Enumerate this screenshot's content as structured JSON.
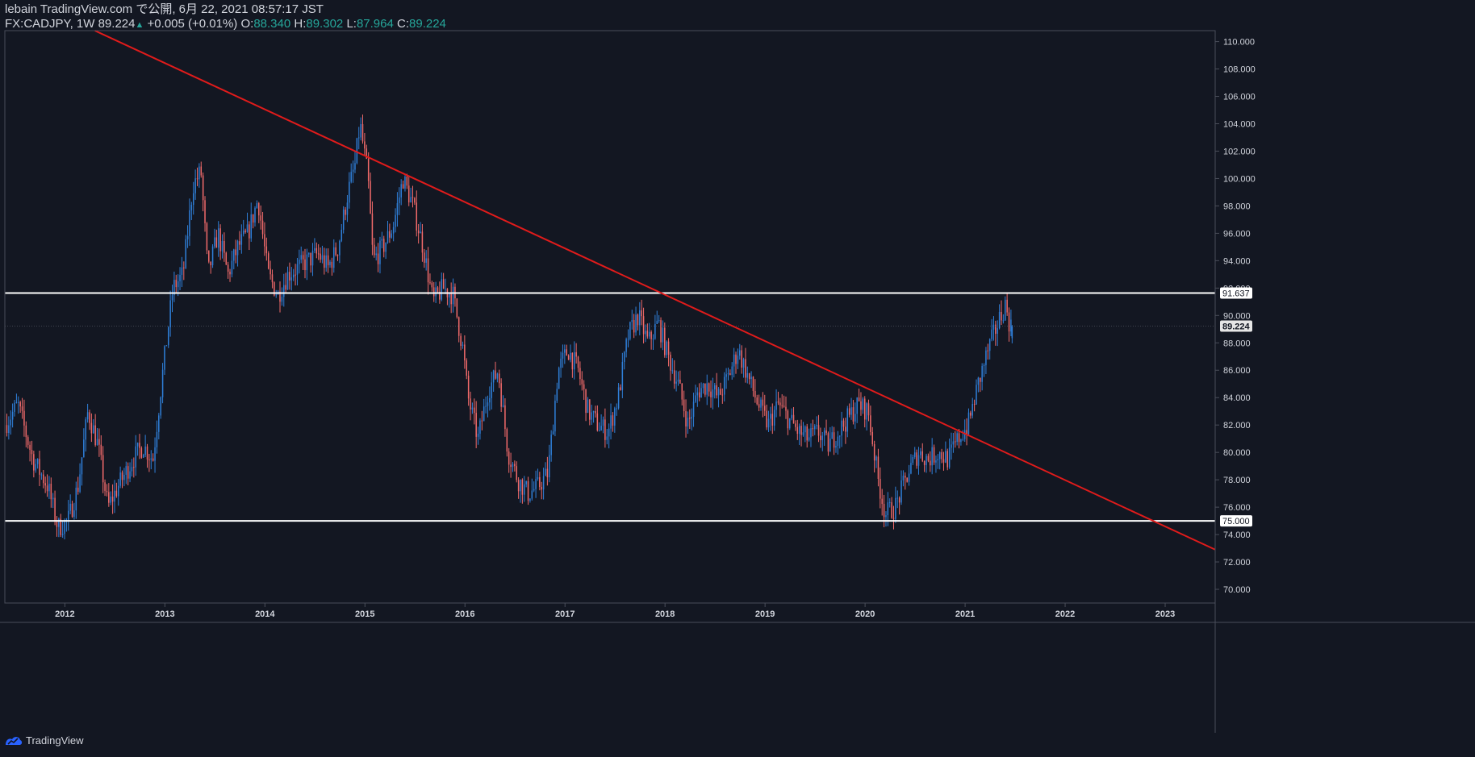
{
  "header": {
    "published": "lebain TradingView.com で公開, 6月 22, 2021 08:57:17 JST",
    "symbol": "FX:CADJPY, 1W",
    "last": "89.224",
    "change": "+0.005 (+0.01%)",
    "open_label": "O:",
    "open": "88.340",
    "high_label": "H:",
    "high": "89.302",
    "low_label": "L:",
    "low": "87.964",
    "close_label": "C:",
    "close": "89.224"
  },
  "footer": {
    "brand": "TradingView"
  },
  "colors": {
    "background": "#131722",
    "up": "#2f7fd8",
    "down": "#f06a6a",
    "trendline": "#e01b1b",
    "level": "#ffffff",
    "axis_text": "#d1d4dc",
    "grid_border": "#4a4e5a"
  },
  "chart_data": {
    "type": "candlestick",
    "symbol": "CADJPY",
    "timeframe": "1W",
    "ylim": [
      69.0,
      110.8
    ],
    "xlim": [
      2011.4,
      2023.5
    ],
    "y_ticks": [
      "70.000",
      "72.000",
      "74.000",
      "76.000",
      "78.000",
      "80.000",
      "82.000",
      "84.000",
      "86.000",
      "88.000",
      "90.000",
      "92.000",
      "94.000",
      "96.000",
      "98.000",
      "100.000",
      "102.000",
      "104.000",
      "106.000",
      "108.000",
      "110.000"
    ],
    "x_ticks": [
      "2012",
      "2013",
      "2014",
      "2015",
      "2016",
      "2017",
      "2018",
      "2019",
      "2020",
      "2021",
      "2022",
      "2023"
    ],
    "horizontal_levels": [
      {
        "value": 91.637,
        "label": "91.637"
      },
      {
        "value": 75.0,
        "label": "75.000"
      }
    ],
    "last_price_label": "89.224",
    "trendline": {
      "points": [
        [
          2012.3,
          110.8
        ],
        [
          2023.5,
          72.9
        ]
      ]
    },
    "price_path": [
      [
        2011.42,
        82.0
      ],
      [
        2011.55,
        83.5
      ],
      [
        2011.7,
        79.5
      ],
      [
        2011.85,
        77.5
      ],
      [
        2011.95,
        74.5
      ],
      [
        2012.05,
        75.0
      ],
      [
        2012.15,
        77.5
      ],
      [
        2012.25,
        83.0
      ],
      [
        2012.35,
        80.5
      ],
      [
        2012.45,
        76.0
      ],
      [
        2012.55,
        77.5
      ],
      [
        2012.7,
        79.5
      ],
      [
        2012.8,
        80.5
      ],
      [
        2012.9,
        79.5
      ],
      [
        2013.0,
        86.0
      ],
      [
        2013.1,
        92.0
      ],
      [
        2013.2,
        93.0
      ],
      [
        2013.3,
        99.5
      ],
      [
        2013.38,
        100.5
      ],
      [
        2013.45,
        93.0
      ],
      [
        2013.55,
        96.0
      ],
      [
        2013.65,
        93.0
      ],
      [
        2013.75,
        95.0
      ],
      [
        2013.85,
        96.0
      ],
      [
        2013.95,
        98.5
      ],
      [
        2014.05,
        93.0
      ],
      [
        2014.15,
        91.5
      ],
      [
        2014.25,
        93.0
      ],
      [
        2014.35,
        93.5
      ],
      [
        2014.45,
        94.0
      ],
      [
        2014.55,
        94.5
      ],
      [
        2014.65,
        93.5
      ],
      [
        2014.75,
        95.0
      ],
      [
        2014.85,
        99.0
      ],
      [
        2014.92,
        101.0
      ],
      [
        2014.97,
        104.0
      ],
      [
        2015.05,
        100.0
      ],
      [
        2015.1,
        94.0
      ],
      [
        2015.2,
        95.0
      ],
      [
        2015.3,
        96.5
      ],
      [
        2015.4,
        100.0
      ],
      [
        2015.5,
        98.0
      ],
      [
        2015.6,
        95.0
      ],
      [
        2015.7,
        91.0
      ],
      [
        2015.8,
        92.0
      ],
      [
        2015.9,
        91.5
      ],
      [
        2016.0,
        87.5
      ],
      [
        2016.05,
        84.0
      ],
      [
        2016.15,
        81.0
      ],
      [
        2016.25,
        84.5
      ],
      [
        2016.35,
        86.0
      ],
      [
        2016.45,
        80.0
      ],
      [
        2016.55,
        78.0
      ],
      [
        2016.65,
        77.0
      ],
      [
        2016.75,
        77.5
      ],
      [
        2016.85,
        78.5
      ],
      [
        2016.95,
        86.0
      ],
      [
        2017.05,
        87.5
      ],
      [
        2017.15,
        86.0
      ],
      [
        2017.25,
        83.0
      ],
      [
        2017.35,
        82.0
      ],
      [
        2017.45,
        81.5
      ],
      [
        2017.55,
        84.0
      ],
      [
        2017.65,
        88.5
      ],
      [
        2017.75,
        90.0
      ],
      [
        2017.85,
        88.0
      ],
      [
        2017.95,
        89.5
      ],
      [
        2018.05,
        87.0
      ],
      [
        2018.15,
        85.0
      ],
      [
        2018.25,
        82.0
      ],
      [
        2018.35,
        84.5
      ],
      [
        2018.45,
        85.0
      ],
      [
        2018.55,
        84.0
      ],
      [
        2018.65,
        85.5
      ],
      [
        2018.75,
        87.5
      ],
      [
        2018.85,
        85.5
      ],
      [
        2018.95,
        83.5
      ],
      [
        2019.05,
        82.0
      ],
      [
        2019.15,
        83.5
      ],
      [
        2019.25,
        82.5
      ],
      [
        2019.35,
        81.5
      ],
      [
        2019.45,
        81.0
      ],
      [
        2019.55,
        81.5
      ],
      [
        2019.65,
        80.5
      ],
      [
        2019.75,
        81.5
      ],
      [
        2019.85,
        82.5
      ],
      [
        2019.95,
        83.5
      ],
      [
        2020.05,
        83.0
      ],
      [
        2020.15,
        78.0
      ],
      [
        2020.22,
        75.5
      ],
      [
        2020.32,
        76.0
      ],
      [
        2020.45,
        78.5
      ],
      [
        2020.55,
        80.0
      ],
      [
        2020.65,
        79.5
      ],
      [
        2020.75,
        80.0
      ],
      [
        2020.85,
        79.5
      ],
      [
        2020.95,
        81.0
      ],
      [
        2021.05,
        82.0
      ],
      [
        2021.15,
        85.0
      ],
      [
        2021.25,
        87.5
      ],
      [
        2021.35,
        89.5
      ],
      [
        2021.42,
        90.8
      ],
      [
        2021.47,
        89.2
      ]
    ],
    "last_ohlc": {
      "open": 88.34,
      "high": 89.302,
      "low": 87.964,
      "close": 89.224
    }
  }
}
